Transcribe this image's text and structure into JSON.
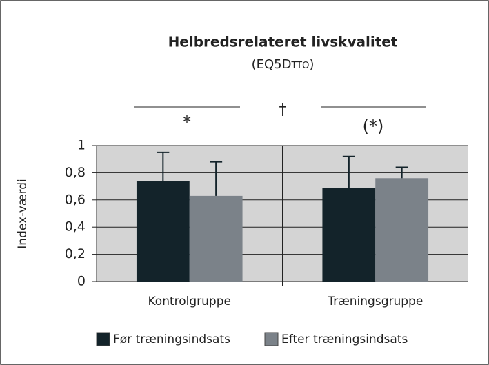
{
  "chart_data": {
    "type": "bar",
    "title": "Helbredsrelateret livskvalitet",
    "subtitle": "(EQ5Dtto)",
    "y_label": "Index-værdi",
    "categories": [
      "Kontrolgruppe",
      "Træningsgruppe"
    ],
    "series": [
      {
        "name": "Før træningsindsats",
        "color": "#13232a",
        "values": [
          0.74,
          0.69
        ],
        "errors": [
          0.21,
          0.23
        ]
      },
      {
        "name": "Efter træningsindsats",
        "color": "#7b8289",
        "values": [
          0.63,
          0.76
        ],
        "errors": [
          0.25,
          0.08
        ]
      }
    ],
    "annotations": [
      "*",
      "†",
      "(*)"
    ],
    "ylim": [
      0,
      1
    ],
    "yticks": [
      0,
      {
        "value": 0.2,
        "label": "0,2"
      },
      {
        "value": 0.4,
        "label": "0,4"
      },
      {
        "value": 0.6,
        "label": "0,6"
      },
      {
        "value": 0.8,
        "label": "0,8"
      },
      1
    ],
    "grid": true,
    "plot_background": "#d4d4d4"
  }
}
